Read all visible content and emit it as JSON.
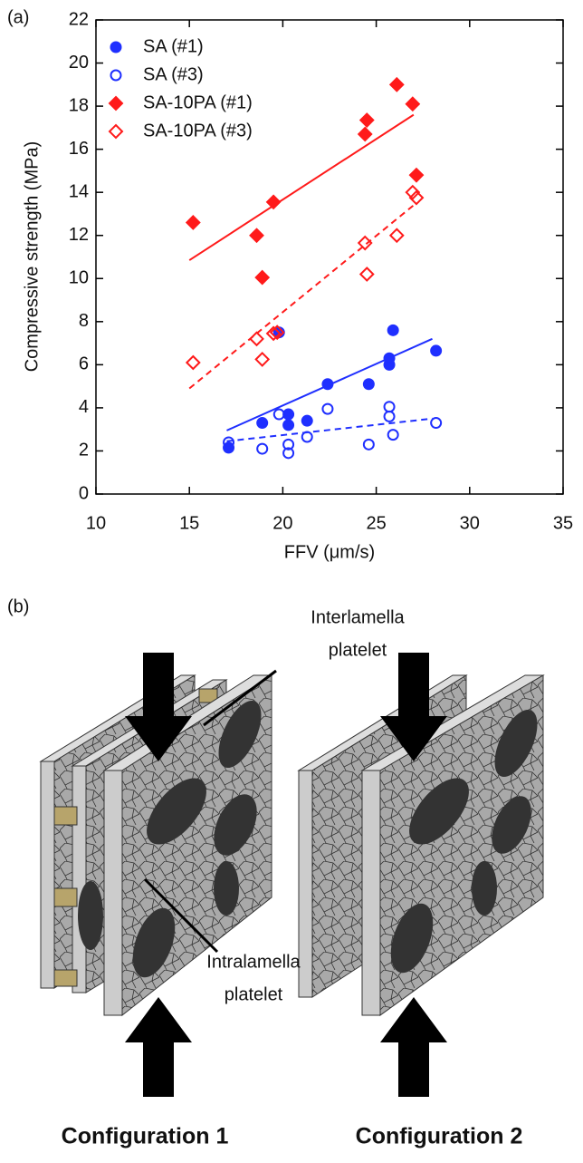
{
  "chart_data": {
    "type": "scatter",
    "panel_label": "(a)",
    "x_label": "FFV (μm/s)",
    "y_label": "Compressive strength (MPa)",
    "xlim": [
      10,
      35
    ],
    "xticks": [
      10,
      15,
      20,
      25,
      30,
      35
    ],
    "ylim": [
      0,
      22
    ],
    "yticks": [
      0,
      2,
      4,
      6,
      8,
      10,
      12,
      14,
      16,
      18,
      20,
      22
    ],
    "legend": "upper-left",
    "series": [
      {
        "name": "SA (#1)",
        "color": "#1f2fff",
        "marker": "circle",
        "filled": true,
        "line_style": "solid",
        "x": [
          17.1,
          18.9,
          19.8,
          20.3,
          20.3,
          21.3,
          22.4,
          24.6,
          25.7,
          25.7,
          25.9,
          28.2
        ],
        "values": [
          2.15,
          3.3,
          7.5,
          3.7,
          3.2,
          3.4,
          5.1,
          5.1,
          6.0,
          6.3,
          7.6,
          6.65
        ],
        "fit": {
          "x": [
            17,
            28
          ],
          "values": [
            2.95,
            7.2
          ]
        }
      },
      {
        "name": "SA (#3)",
        "color": "#1f2fff",
        "marker": "circle",
        "filled": false,
        "line_style": "dashed",
        "x": [
          17.1,
          18.9,
          19.8,
          20.3,
          20.3,
          21.3,
          22.4,
          24.6,
          25.7,
          25.7,
          25.9,
          28.2
        ],
        "values": [
          2.4,
          2.1,
          3.7,
          2.3,
          1.9,
          2.65,
          3.95,
          2.3,
          4.05,
          3.6,
          2.75,
          3.3
        ],
        "fit": {
          "x": [
            17,
            28
          ],
          "values": [
            2.45,
            3.5
          ]
        }
      },
      {
        "name": "SA-10PA (#1)",
        "color": "#ff1a1a",
        "marker": "diamond",
        "filled": true,
        "line_style": "solid",
        "x": [
          15.2,
          18.6,
          18.9,
          19.5,
          24.4,
          24.5,
          26.1,
          26.95,
          27.15
        ],
        "values": [
          12.6,
          12.0,
          10.05,
          13.55,
          16.7,
          17.35,
          19.0,
          18.1,
          14.8
        ],
        "fit": {
          "x": [
            15,
            27
          ],
          "values": [
            10.85,
            17.6
          ]
        }
      },
      {
        "name": "SA-10PA (#3)",
        "color": "#ff1a1a",
        "marker": "diamond",
        "filled": false,
        "line_style": "dashed",
        "x": [
          15.2,
          18.6,
          18.9,
          19.5,
          19.7,
          24.4,
          24.5,
          26.1,
          26.95,
          27.15
        ],
        "values": [
          6.1,
          7.2,
          6.25,
          7.45,
          7.5,
          11.65,
          10.2,
          12.0,
          14.0,
          13.75
        ],
        "fit": {
          "x": [
            15,
            27
          ],
          "values": [
            4.9,
            13.4
          ]
        }
      }
    ]
  },
  "diagram": {
    "panel_label": "(b)",
    "annotations": [
      {
        "lines": [
          "Interlamella",
          "platelet"
        ]
      },
      {
        "lines": [
          "Intralamella",
          "platelet"
        ]
      }
    ],
    "captions": [
      "Configuration 1",
      "Configuration 2"
    ]
  }
}
